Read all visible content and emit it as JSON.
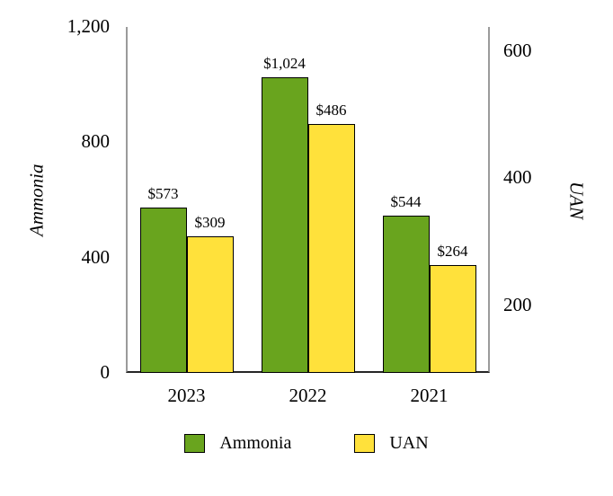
{
  "chart_data": {
    "type": "bar",
    "title": "",
    "xlabel": "",
    "categories": [
      "2023",
      "2022",
      "2021"
    ],
    "series": [
      {
        "name": "Ammonia",
        "axis": "left",
        "color": "#69A41E",
        "values": [
          573,
          1024,
          544
        ],
        "value_labels": [
          "$573",
          "$1,024",
          "$544"
        ]
      },
      {
        "name": "UAN",
        "axis": "right",
        "color": "#FFE13B",
        "values": [
          309,
          486,
          264
        ],
        "value_labels": [
          "$309",
          "$486",
          "$264"
        ]
      }
    ],
    "left_axis": {
      "title": "Ammonia",
      "min": 0,
      "max": 1200,
      "ticks": [
        0,
        400,
        800,
        1200
      ],
      "tick_labels": [
        "0",
        "400",
        "800",
        "1,200"
      ]
    },
    "right_axis": {
      "title": "UAN",
      "min": 94,
      "max": 638,
      "ticks": [
        200,
        400,
        600
      ],
      "tick_labels": [
        "200",
        "400",
        "600"
      ]
    },
    "grid": false,
    "legend": {
      "position": "bottom",
      "entries": [
        "Ammonia",
        "UAN"
      ]
    }
  },
  "colors": {
    "ammonia_fill": "#69A41E",
    "uan_fill": "#FFE13B",
    "bar_border": "#000000",
    "side_axis_line": "#9b9b9b",
    "bottom_axis_line": "#262626",
    "background": "#ffffff",
    "text": "#000000"
  }
}
